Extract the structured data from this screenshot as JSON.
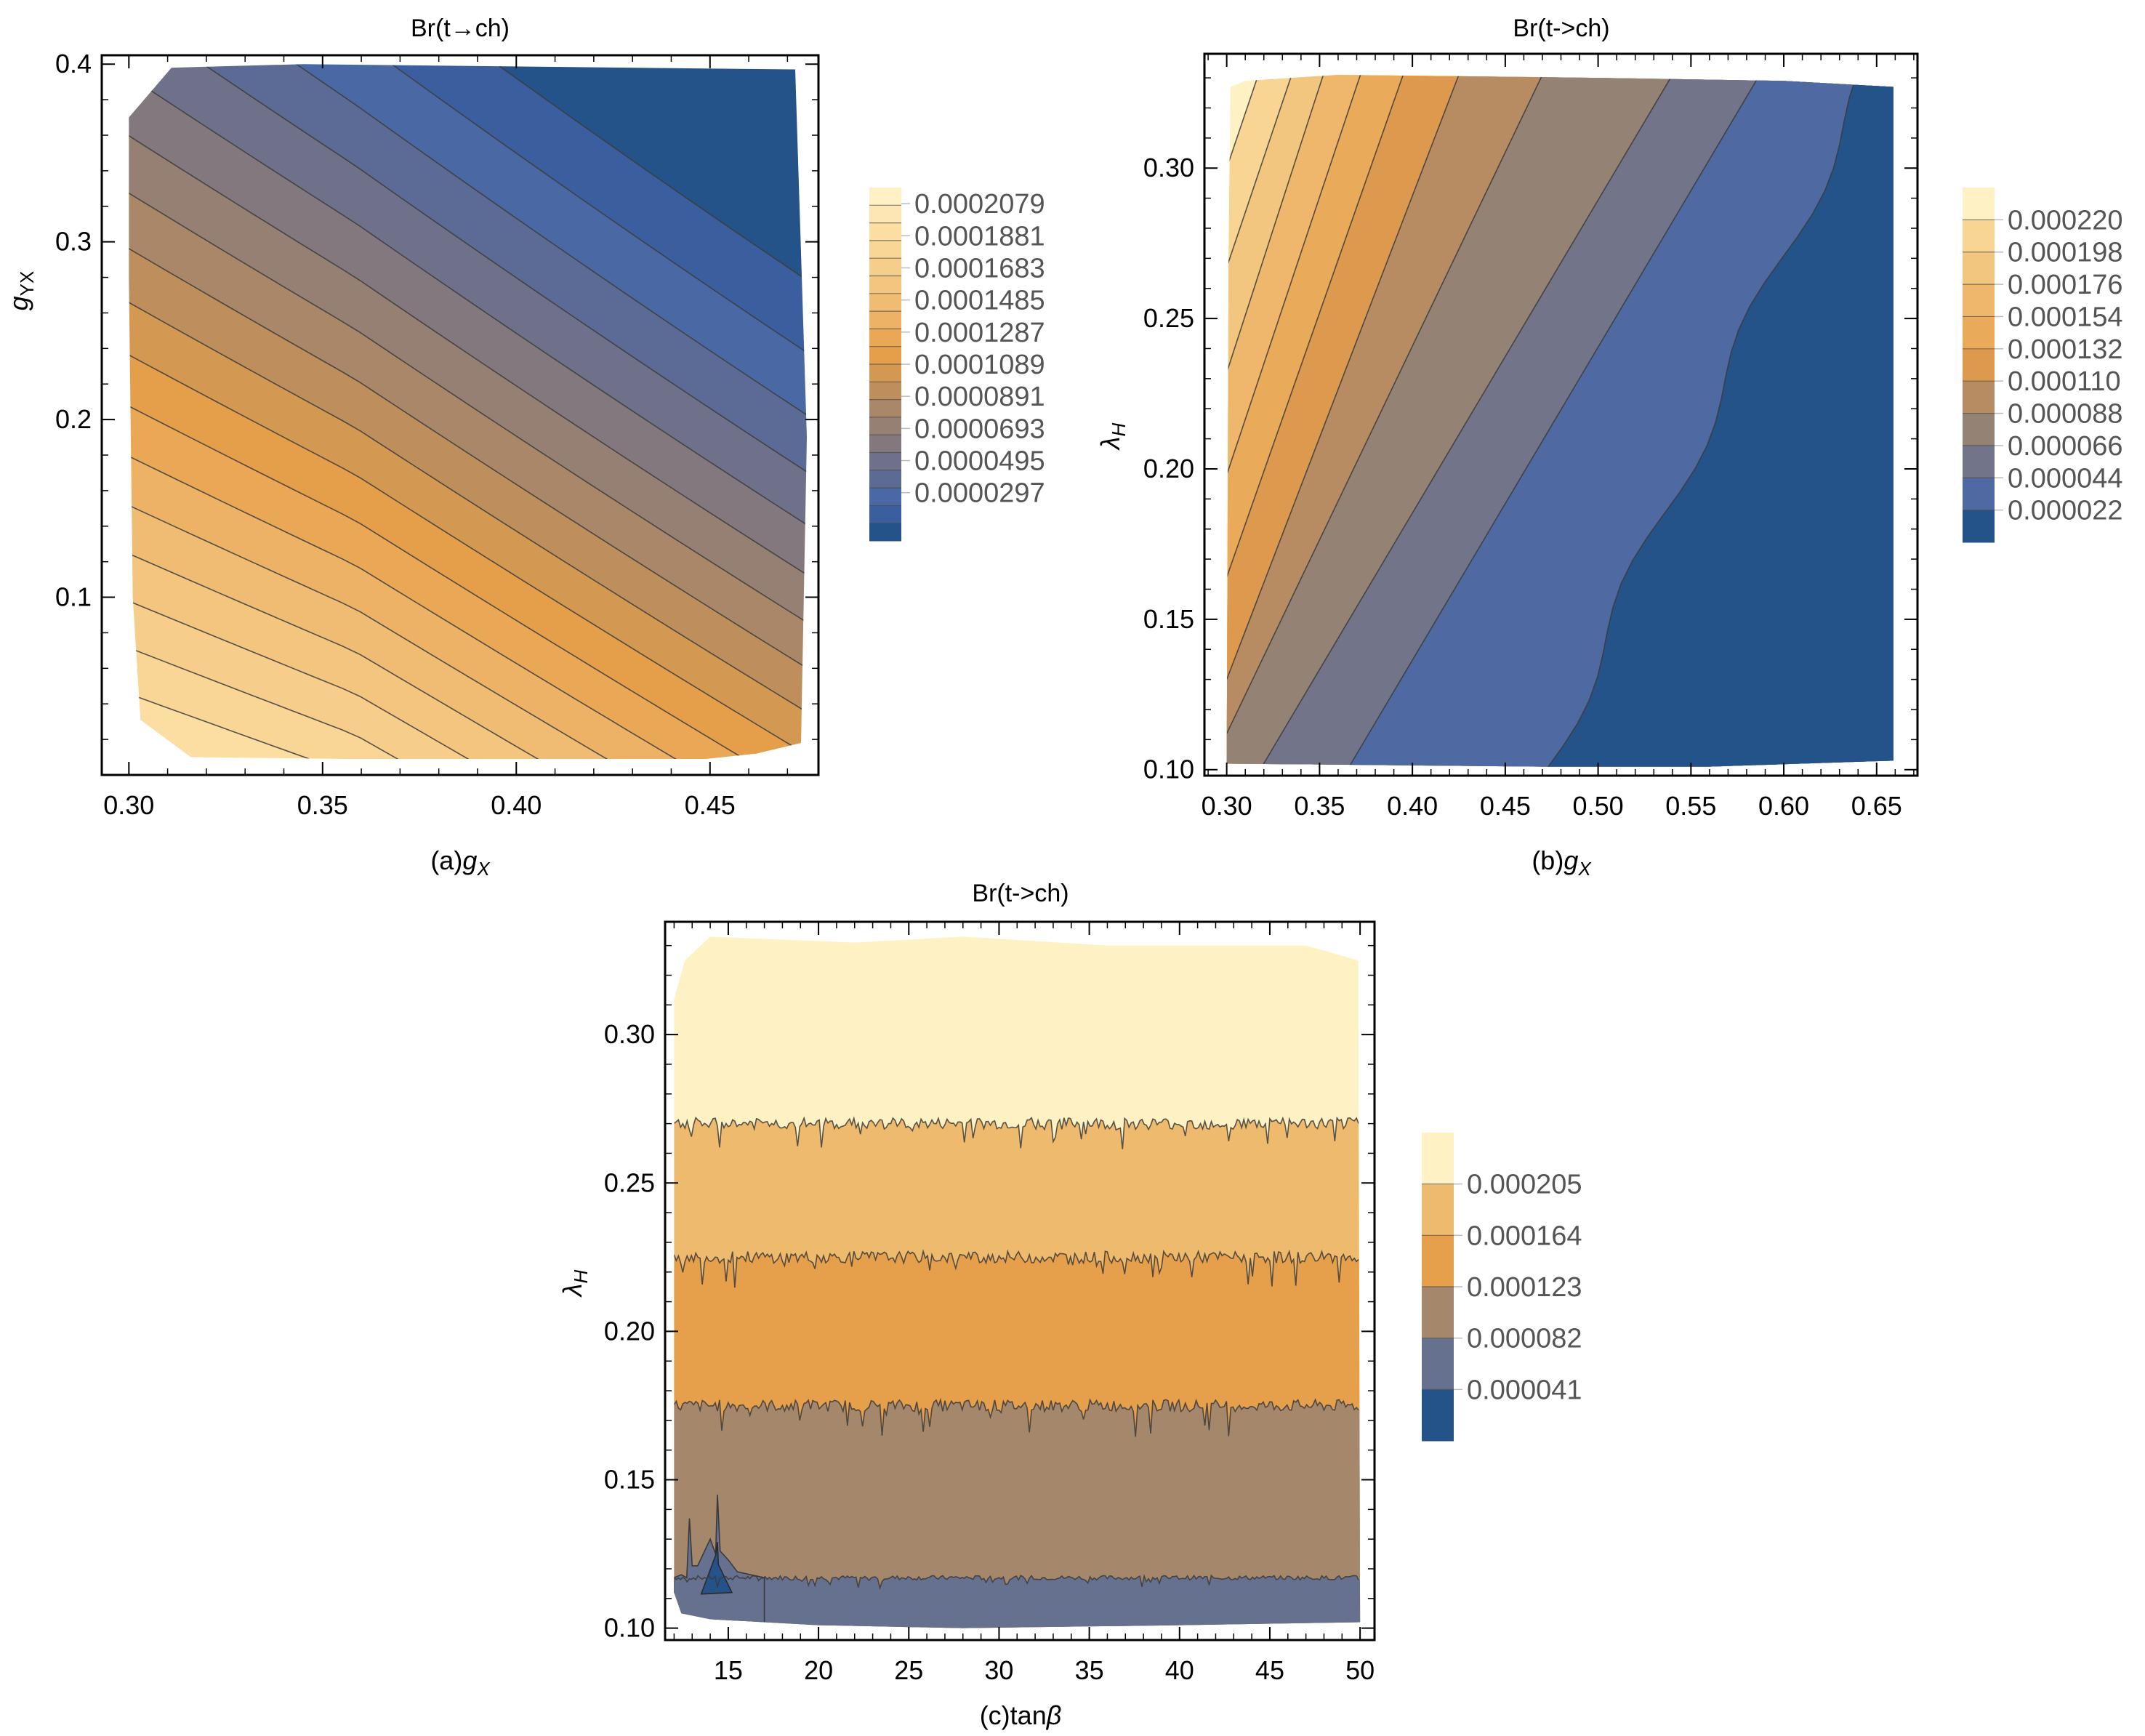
{
  "chart_data": [
    {
      "id": "a",
      "type": "contour",
      "title": "Br(t→ch)",
      "xlabel_prefix": "(a)",
      "xlabel_symbol": "g",
      "xlabel_sub": "X",
      "ylabel_symbol": "g",
      "ylabel_sub": "YX",
      "xlim": [
        0.293,
        0.478
      ],
      "ylim": [
        0.0,
        0.405
      ],
      "xticks": [
        0.3,
        0.35,
        0.4,
        0.45
      ],
      "xtick_labels": [
        "0.30",
        "0.35",
        "0.40",
        "0.45"
      ],
      "yticks": [
        0.1,
        0.2,
        0.3,
        0.4
      ],
      "ytick_labels": [
        "0.1",
        "0.2",
        "0.3",
        "0.4"
      ],
      "data_x_range": [
        0.3,
        0.475
      ],
      "data_y_range": [
        0.01,
        0.4
      ],
      "trend": "Br decreases with increasing g_X and g_YX; maximum near g_X=0.30, g_YX=0.01",
      "legend": {
        "position": "right",
        "levels": [
          2.97e-05,
          4.95e-05,
          6.93e-05,
          8.91e-05,
          0.0001089,
          0.0001287,
          0.0001485,
          0.0001683,
          0.0001881,
          0.0002079
        ],
        "labels": [
          "0.0002079",
          "0.0001881",
          "0.0001683",
          "0.0001485",
          "0.0001287",
          "0.0001089",
          "0.0000891",
          "0.0000693",
          "0.0000495",
          "0.0000297"
        ],
        "colors": [
          "#24538a",
          "#3b5e9e",
          "#4a68a3",
          "#5c6b95",
          "#6e7189",
          "#82787e",
          "#967f73",
          "#a98768",
          "#be8f5d",
          "#d39852",
          "#e59f4a",
          "#eaa857",
          "#edb266",
          "#f0bc73",
          "#f3c57f",
          "#f6cd8a",
          "#f9d695",
          "#fcdea3",
          "#fde6b3",
          "#fef2c4"
        ]
      }
    },
    {
      "id": "b",
      "type": "contour",
      "title": "Br(t->ch)",
      "xlabel_prefix": "(b)",
      "xlabel_symbol": "g",
      "xlabel_sub": "X",
      "ylabel_symbol": "λ",
      "ylabel_sub": "H",
      "xlim": [
        0.288,
        0.672
      ],
      "ylim": [
        0.098,
        0.338
      ],
      "xticks": [
        0.3,
        0.35,
        0.4,
        0.45,
        0.5,
        0.55,
        0.6,
        0.65
      ],
      "xtick_labels": [
        "0.30",
        "0.35",
        "0.40",
        "0.45",
        "0.50",
        "0.55",
        "0.60",
        "0.65"
      ],
      "yticks": [
        0.1,
        0.15,
        0.2,
        0.25,
        0.3
      ],
      "ytick_labels": [
        "0.10",
        "0.15",
        "0.20",
        "0.25",
        "0.30"
      ],
      "data_x_range": [
        0.3,
        0.66
      ],
      "data_y_range": [
        0.1,
        0.33
      ],
      "trend": "Br decreases with increasing g_X, increases with lambda_H; bands tilted",
      "legend": {
        "position": "right",
        "levels": [
          2.2e-05,
          4.4e-05,
          6.6e-05,
          8.8e-05,
          0.00011,
          0.000132,
          0.000154,
          0.000176,
          0.000198,
          0.00022
        ],
        "labels": [
          "0.000220",
          "0.000198",
          "0.000176",
          "0.000154",
          "0.000132",
          "0.000110",
          "0.000088",
          "0.000066",
          "0.000044",
          "0.000022"
        ],
        "colors": [
          "#24538a",
          "#4f69a2",
          "#727489",
          "#948275",
          "#b88c63",
          "#dd9a4f",
          "#e9aa59",
          "#eeb76b",
          "#f3c67f",
          "#f8d592",
          "#fef2c4"
        ]
      }
    },
    {
      "id": "c",
      "type": "contour",
      "title": "Br(t->ch)",
      "xlabel_prefix": "(c)",
      "xlabel_symbol": "tan",
      "xlabel_sub": "β",
      "ylabel_symbol": "λ",
      "ylabel_sub": "H",
      "xlim": [
        11.5,
        50.8
      ],
      "ylim": [
        0.096,
        0.338
      ],
      "xticks": [
        15,
        20,
        25,
        30,
        35,
        40,
        45,
        50
      ],
      "xtick_labels": [
        "15",
        "20",
        "25",
        "30",
        "35",
        "40",
        "45",
        "50"
      ],
      "yticks": [
        0.1,
        0.15,
        0.2,
        0.25,
        0.3
      ],
      "ytick_labels": [
        "0.10",
        "0.15",
        "0.20",
        "0.25",
        "0.30"
      ],
      "data_x_range": [
        12,
        50
      ],
      "data_y_range": [
        0.1,
        0.33
      ],
      "band_boundaries_lambdaH": [
        0.117,
        0.175,
        0.225,
        0.27
      ],
      "trend": "Br nearly independent of tan beta; increases with lambda_H (horizontal bands with noise)",
      "legend": {
        "position": "right",
        "levels": [
          4.1e-05,
          8.2e-05,
          0.000123,
          0.000164,
          0.000205
        ],
        "labels": [
          "0.000205",
          "0.000164",
          "0.000123",
          "0.000082",
          "0.000041"
        ],
        "colors": [
          "#24538a",
          "#66708f",
          "#a5876c",
          "#e6a04c",
          "#eeba6e",
          "#fef2c4"
        ]
      }
    }
  ]
}
